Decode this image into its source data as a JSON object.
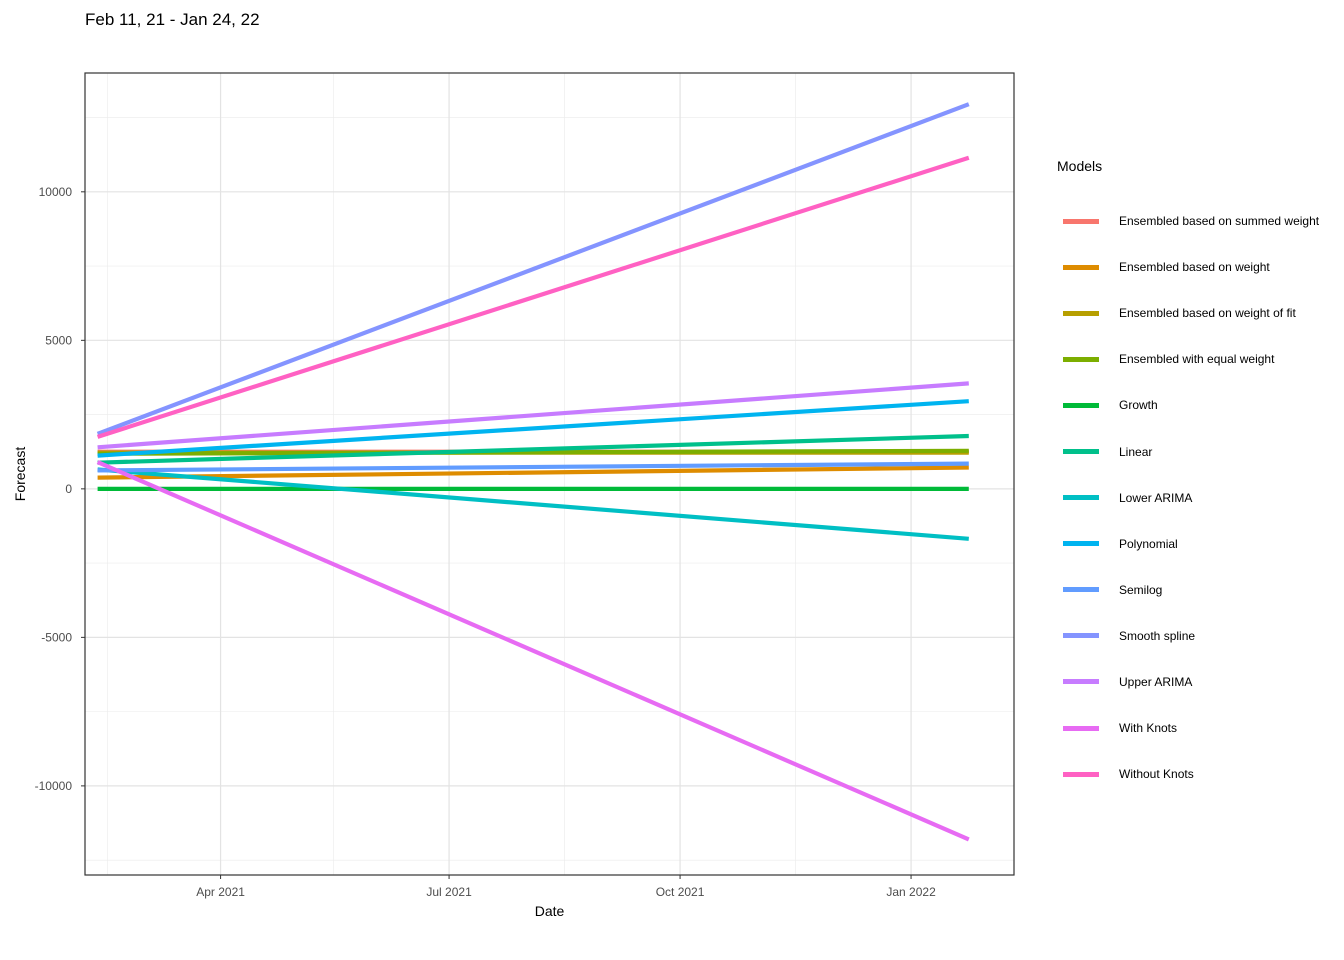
{
  "chart_data": {
    "type": "line",
    "title": "Feb 11, 21 - Jan 24, 22",
    "xlabel": "Date",
    "ylabel": "Forecast",
    "x_range": [
      "2021-02-11",
      "2022-01-24"
    ],
    "ylim": [
      -13000,
      14000
    ],
    "y_ticks": [
      -10000,
      -5000,
      0,
      5000,
      10000
    ],
    "x_ticks": [
      {
        "date": "2021-04-01",
        "label": "Apr 2021"
      },
      {
        "date": "2021-07-01",
        "label": "Jul 2021"
      },
      {
        "date": "2021-10-01",
        "label": "Oct 2021"
      },
      {
        "date": "2022-01-01",
        "label": "Jan 2022"
      }
    ],
    "x_minor_ticks": [
      "2021-02-15",
      "2021-05-16",
      "2021-08-16",
      "2021-11-16"
    ],
    "y_minor_ticks": [
      -12500,
      -7500,
      -2500,
      2500,
      7500,
      12500
    ],
    "grid": true,
    "legend_title": "Models",
    "legend_position": "right",
    "series": [
      {
        "name": "Ensembled based on summed weight",
        "color": "#F8766D",
        "x": [
          "2021-02-11",
          "2022-01-24"
        ],
        "y": [
          1250,
          1250
        ]
      },
      {
        "name": "Ensembled based on weight",
        "color": "#DE8C00",
        "x": [
          "2021-02-11",
          "2022-01-24"
        ],
        "y": [
          380,
          720
        ]
      },
      {
        "name": "Ensembled based on weight of fit",
        "color": "#B79F00",
        "x": [
          "2021-02-11",
          "2022-01-24"
        ],
        "y": [
          1220,
          1220
        ]
      },
      {
        "name": "Ensembled with equal weight",
        "color": "#7CAE00",
        "x": [
          "2021-02-11",
          "2022-01-24"
        ],
        "y": [
          1180,
          1280
        ]
      },
      {
        "name": "Growth",
        "color": "#00BA38",
        "x": [
          "2021-02-11",
          "2022-01-24"
        ],
        "y": [
          0,
          0
        ]
      },
      {
        "name": "Linear",
        "color": "#00C08B",
        "x": [
          "2021-02-11",
          "2022-01-24"
        ],
        "y": [
          880,
          1780
        ]
      },
      {
        "name": "Lower ARIMA",
        "color": "#00BFC4",
        "x": [
          "2021-02-11",
          "2022-01-24"
        ],
        "y": [
          650,
          -1680
        ]
      },
      {
        "name": "Polynomial",
        "color": "#00B4F0",
        "x": [
          "2021-02-11",
          "2022-01-24"
        ],
        "y": [
          1120,
          2950
        ]
      },
      {
        "name": "Semilog",
        "color": "#619CFF",
        "x": [
          "2021-02-11",
          "2022-01-24"
        ],
        "y": [
          620,
          850
        ]
      },
      {
        "name": "Smooth spline",
        "color": "#8494FF",
        "x": [
          "2021-02-11",
          "2022-01-24"
        ],
        "y": [
          1850,
          12950
        ]
      },
      {
        "name": "Upper ARIMA",
        "color": "#C77CFF",
        "x": [
          "2021-02-11",
          "2022-01-24"
        ],
        "y": [
          1400,
          3550
        ]
      },
      {
        "name": "With Knots",
        "color": "#E76BF3",
        "x": [
          "2021-02-11",
          "2022-01-24"
        ],
        "y": [
          900,
          -11800
        ]
      },
      {
        "name": "Without Knots",
        "color": "#FF61C3",
        "x": [
          "2021-02-11",
          "2022-01-24"
        ],
        "y": [
          1750,
          11150
        ]
      }
    ]
  }
}
